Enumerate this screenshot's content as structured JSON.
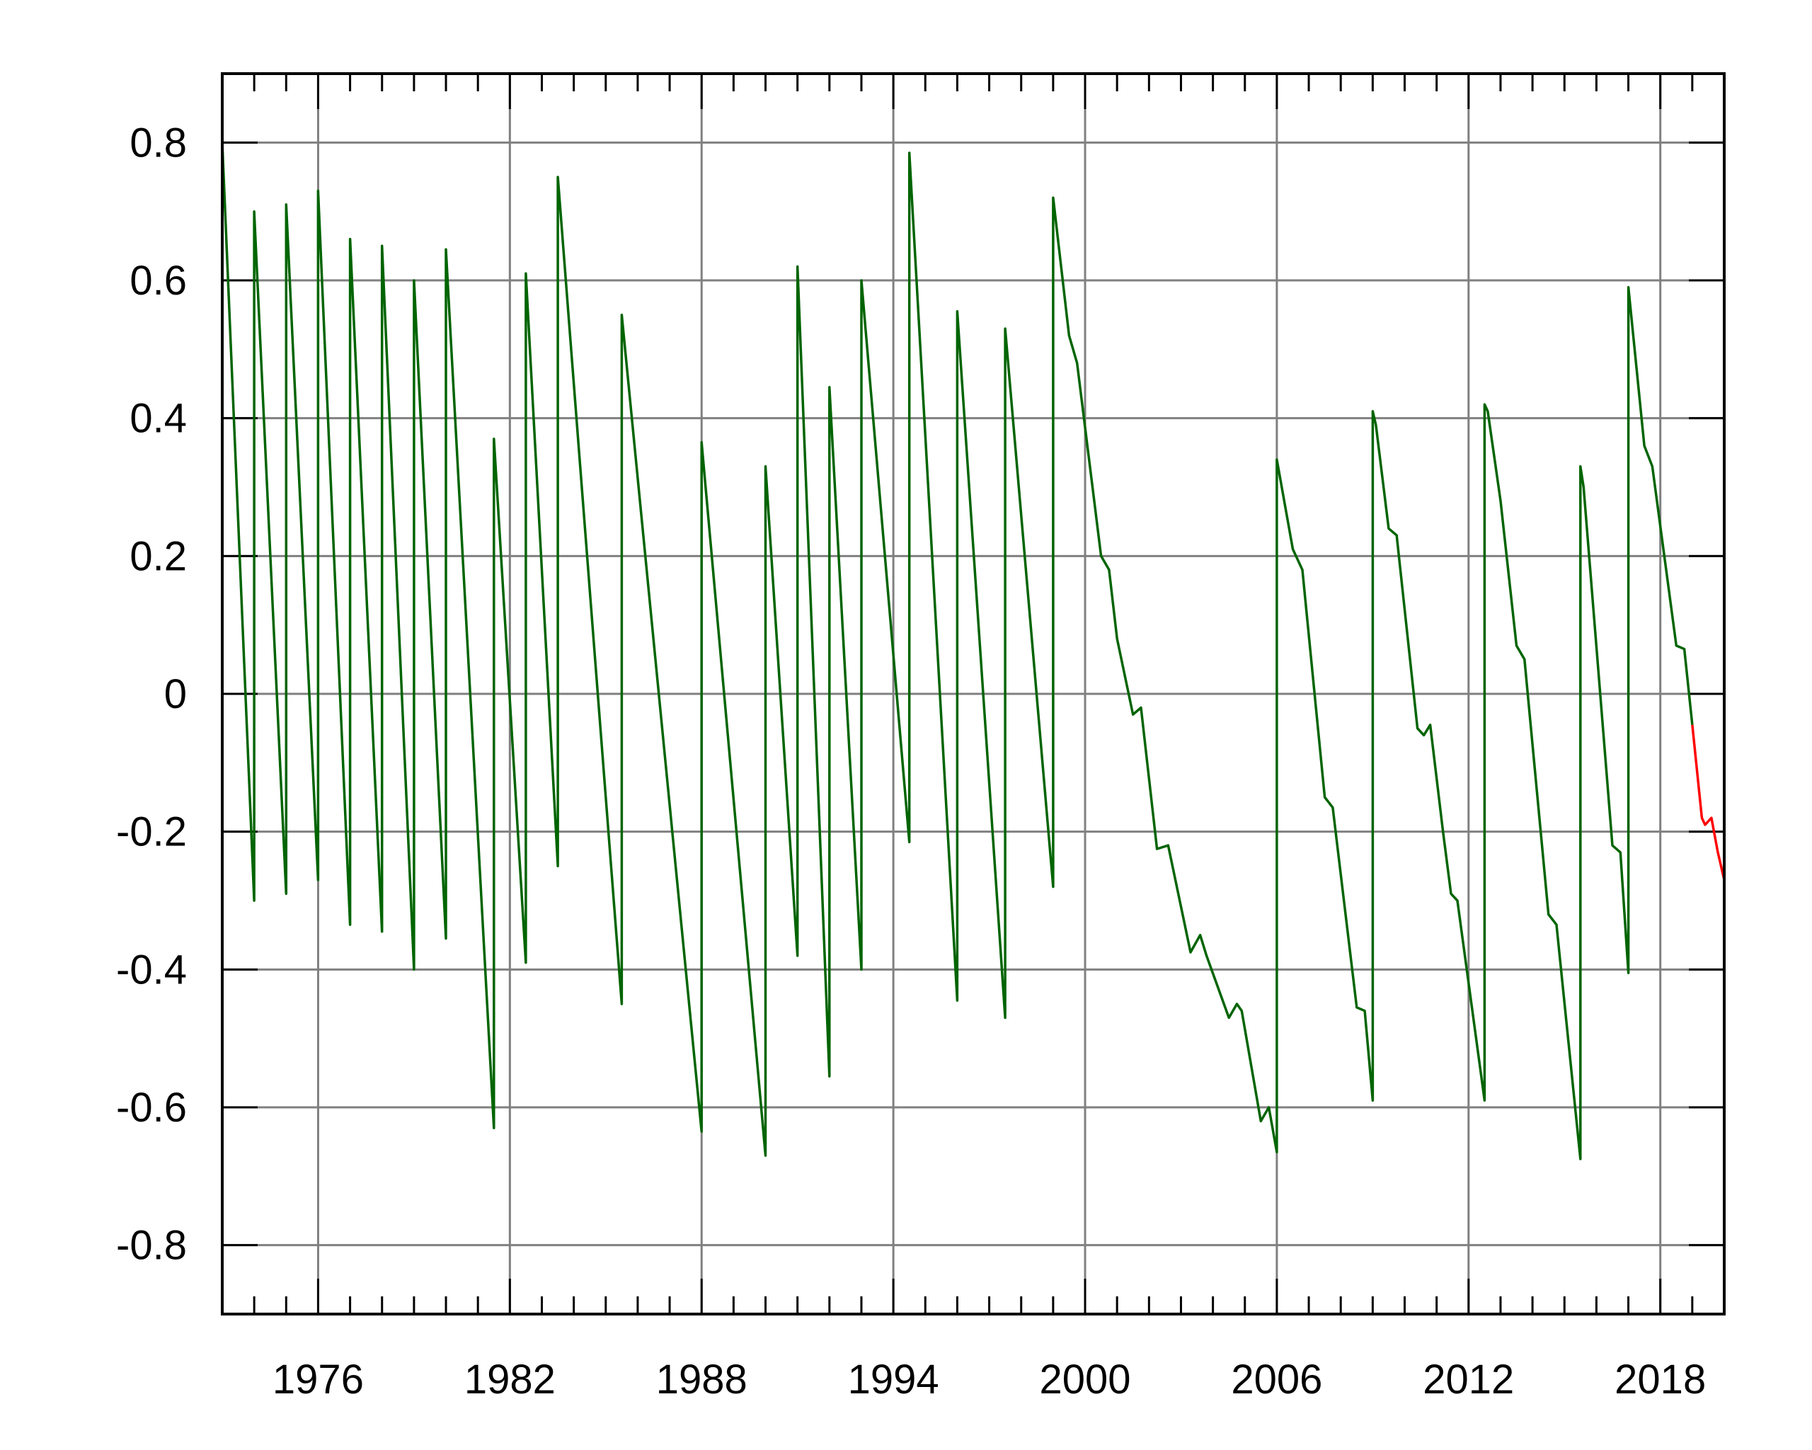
{
  "chart_data": {
    "type": "line",
    "title": "",
    "xlabel": "",
    "ylabel": "",
    "xlim": [
      1973.0,
      2020.0
    ],
    "ylim": [
      -0.9,
      0.9
    ],
    "grid": true,
    "x_ticks": [
      1976,
      1982,
      1988,
      1994,
      2000,
      2006,
      2012,
      2018
    ],
    "x_tick_labels": [
      "1976",
      "1982",
      "1988",
      "1994",
      "2000",
      "2006",
      "2012",
      "2018"
    ],
    "y_ticks": [
      0.8,
      0.6,
      0.4,
      0.2,
      0,
      -0.2,
      -0.4,
      -0.6,
      -0.8
    ],
    "y_tick_labels": [
      "0.8",
      "0.6",
      "0.4",
      "0.2",
      "0",
      "-0.2",
      "-0.4",
      "-0.6",
      "-0.8"
    ],
    "colors": {
      "observed": "#006400",
      "projected": "#ff0000",
      "grid": "#808080",
      "frame": "#000000"
    },
    "series": [
      {
        "color": "#006400",
        "points": [
          [
            1973.0,
            0.8
          ],
          [
            1974.0,
            -0.3
          ],
          [
            1974.0,
            0.7
          ],
          [
            1975.0,
            -0.29
          ],
          [
            1975.0,
            0.71
          ],
          [
            1976.0,
            -0.27
          ],
          [
            1976.0,
            0.73
          ],
          [
            1977.0,
            -0.335
          ],
          [
            1977.0,
            0.66
          ],
          [
            1978.0,
            -0.345
          ],
          [
            1978.0,
            0.65
          ],
          [
            1979.0,
            -0.4
          ],
          [
            1979.0,
            0.6
          ],
          [
            1980.0,
            -0.355
          ],
          [
            1980.0,
            0.645
          ],
          [
            1981.5,
            -0.63
          ],
          [
            1981.5,
            0.37
          ],
          [
            1982.5,
            -0.39
          ],
          [
            1982.5,
            0.61
          ],
          [
            1983.5,
            -0.25
          ],
          [
            1983.5,
            0.75
          ],
          [
            1985.5,
            -0.45
          ],
          [
            1985.5,
            0.55
          ],
          [
            1988.0,
            -0.635
          ],
          [
            1988.0,
            0.365
          ],
          [
            1990.0,
            -0.67
          ],
          [
            1990.0,
            0.33
          ],
          [
            1991.0,
            -0.38
          ],
          [
            1991.0,
            0.62
          ],
          [
            1992.0,
            -0.555
          ],
          [
            1992.0,
            0.445
          ],
          [
            1993.0,
            -0.4
          ],
          [
            1993.0,
            0.6
          ],
          [
            1994.5,
            -0.215
          ],
          [
            1994.5,
            0.785
          ],
          [
            1996.0,
            -0.445
          ],
          [
            1996.0,
            0.555
          ],
          [
            1997.5,
            -0.47
          ],
          [
            1997.5,
            0.53
          ],
          [
            1999.0,
            -0.28
          ],
          [
            1999.0,
            0.72
          ],
          [
            1999.5,
            0.52
          ],
          [
            1999.75,
            0.48
          ],
          [
            2000.5,
            0.2
          ],
          [
            2000.75,
            0.18
          ],
          [
            2001.0,
            0.08
          ],
          [
            2001.5,
            -0.03
          ],
          [
            2001.75,
            -0.02
          ],
          [
            2002.25,
            -0.225
          ],
          [
            2002.6,
            -0.22
          ],
          [
            2003.3,
            -0.375
          ],
          [
            2003.6,
            -0.35
          ],
          [
            2003.8,
            -0.38
          ],
          [
            2004.5,
            -0.47
          ],
          [
            2004.75,
            -0.45
          ],
          [
            2004.9,
            -0.46
          ],
          [
            2005.5,
            -0.62
          ],
          [
            2005.75,
            -0.6
          ],
          [
            2006.0,
            -0.665
          ],
          [
            2006.0,
            0.34
          ],
          [
            2006.5,
            0.21
          ],
          [
            2006.8,
            0.18
          ],
          [
            2007.5,
            -0.15
          ],
          [
            2007.75,
            -0.165
          ],
          [
            2008.5,
            -0.455
          ],
          [
            2008.75,
            -0.46
          ],
          [
            2009.0,
            -0.59
          ],
          [
            2009.0,
            0.41
          ],
          [
            2009.1,
            0.39
          ],
          [
            2009.5,
            0.24
          ],
          [
            2009.75,
            0.23
          ],
          [
            2010.4,
            -0.05
          ],
          [
            2010.6,
            -0.06
          ],
          [
            2010.8,
            -0.045
          ],
          [
            2011.2,
            -0.2
          ],
          [
            2011.45,
            -0.29
          ],
          [
            2011.65,
            -0.3
          ],
          [
            2012.5,
            -0.59
          ],
          [
            2012.5,
            0.42
          ],
          [
            2012.6,
            0.41
          ],
          [
            2013.0,
            0.28
          ],
          [
            2013.5,
            0.07
          ],
          [
            2013.75,
            0.05
          ],
          [
            2014.5,
            -0.32
          ],
          [
            2014.75,
            -0.335
          ],
          [
            2015.5,
            -0.675
          ],
          [
            2015.5,
            0.33
          ],
          [
            2015.6,
            0.3
          ],
          [
            2016.5,
            -0.22
          ],
          [
            2016.75,
            -0.23
          ],
          [
            2017.0,
            -0.405
          ],
          [
            2017.0,
            0.59
          ],
          [
            2017.5,
            0.36
          ],
          [
            2017.75,
            0.33
          ],
          [
            2018.5,
            0.07
          ],
          [
            2018.75,
            0.065
          ],
          [
            2019.0,
            -0.045
          ]
        ]
      },
      {
        "color": "#ff0000",
        "points": [
          [
            2019.0,
            -0.045
          ],
          [
            2019.3,
            -0.18
          ],
          [
            2019.4,
            -0.19
          ],
          [
            2019.6,
            -0.18
          ],
          [
            2019.8,
            -0.23
          ],
          [
            2020.0,
            -0.27
          ]
        ]
      }
    ]
  }
}
